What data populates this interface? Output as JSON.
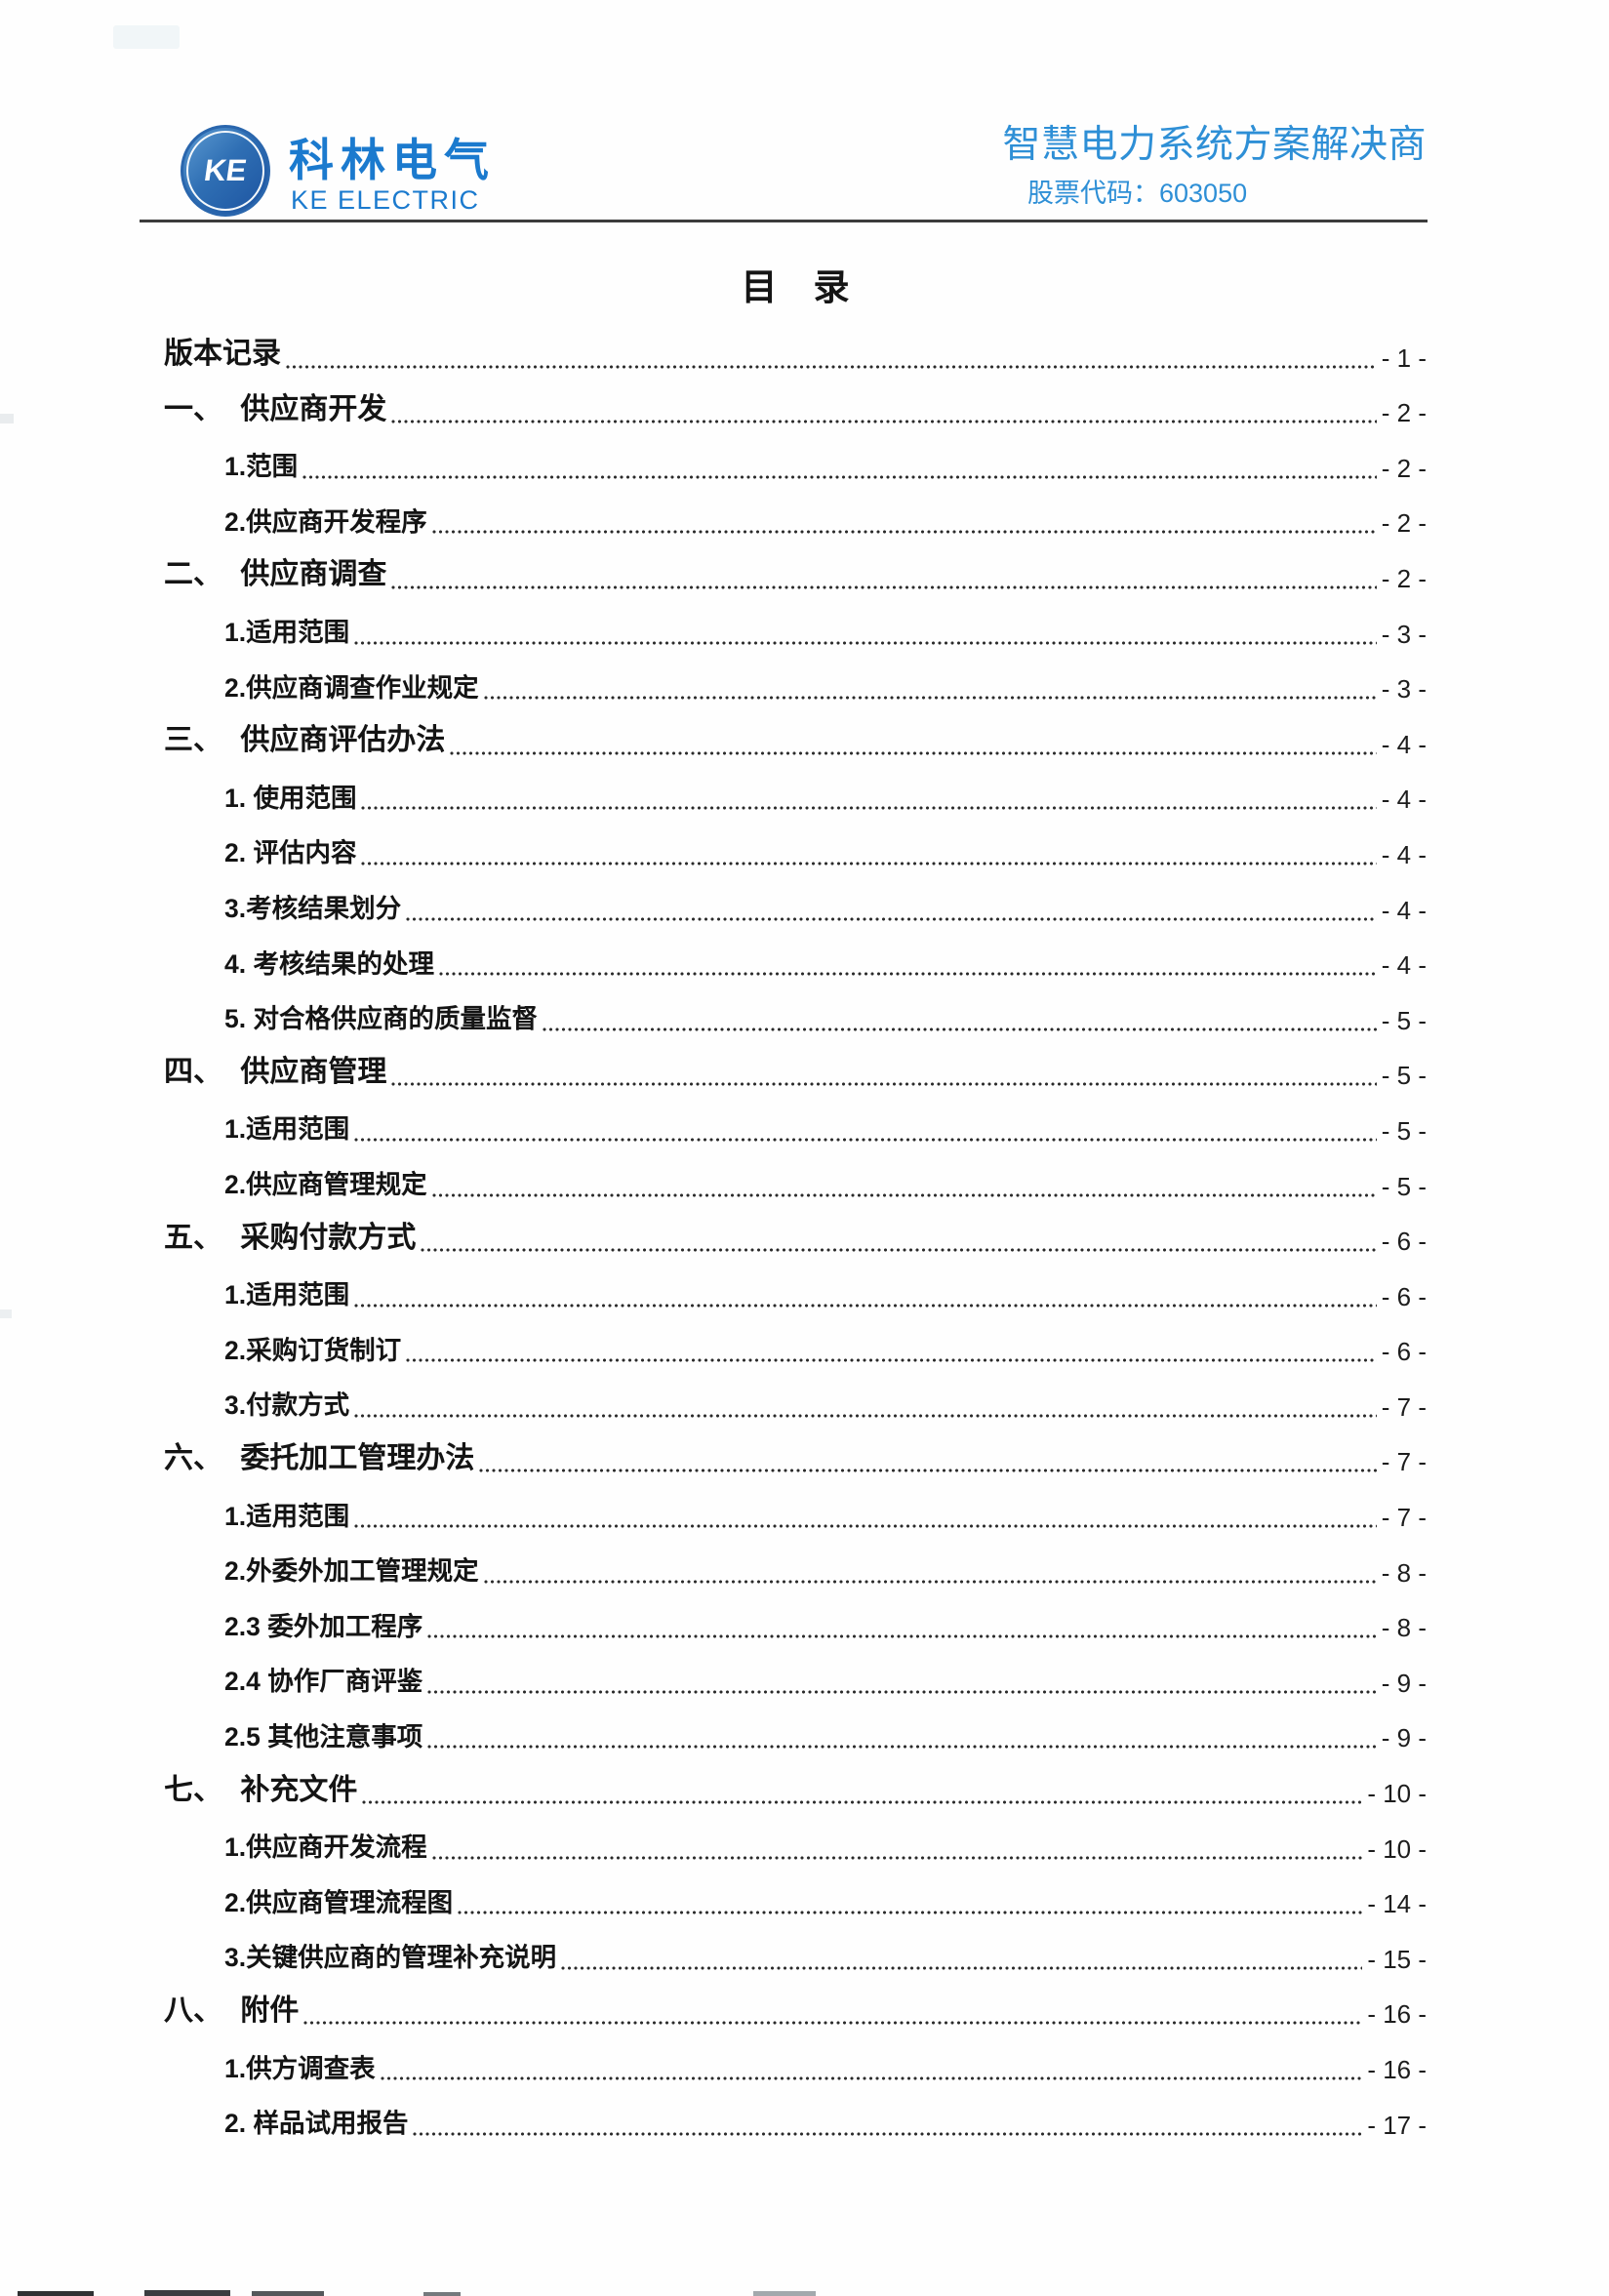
{
  "header": {
    "logo": {
      "monogram": "KE",
      "name_cn": "科林电气",
      "name_en": "KE ELECTRIC"
    },
    "tagline": "智慧电力系统方案解决商",
    "stock_code": "股票代码：603050"
  },
  "toc": {
    "title": "目　录",
    "entries": [
      {
        "level": 1,
        "label": "版本记录",
        "page": "- 1 -"
      },
      {
        "level": 1,
        "label": "一、 供应商开发",
        "page": "- 2 -"
      },
      {
        "level": 2,
        "label": "1.范围",
        "page": "- 2 -"
      },
      {
        "level": 2,
        "label": "2.供应商开发程序",
        "page": "- 2 -"
      },
      {
        "level": 1,
        "label": "二、 供应商调查",
        "page": "- 2 -"
      },
      {
        "level": 2,
        "label": "1.适用范围",
        "page": "- 3 -"
      },
      {
        "level": 2,
        "label": "2.供应商调查作业规定",
        "page": "- 3 -"
      },
      {
        "level": 1,
        "label": "三、 供应商评估办法",
        "page": "- 4 -"
      },
      {
        "level": 2,
        "label": "1.  使用范围",
        "page": "- 4 -"
      },
      {
        "level": 2,
        "label": "2.  评估内容",
        "page": "- 4 -"
      },
      {
        "level": 2,
        "label": "3.考核结果划分",
        "page": "- 4 -"
      },
      {
        "level": 2,
        "label": "4.  考核结果的处理",
        "page": "- 4 -"
      },
      {
        "level": 2,
        "label": "5.  对合格供应商的质量监督",
        "page": "- 5 -"
      },
      {
        "level": 1,
        "label": "四、 供应商管理",
        "page": "- 5 -"
      },
      {
        "level": 2,
        "label": "1.适用范围",
        "page": "- 5 -"
      },
      {
        "level": 2,
        "label": "2.供应商管理规定",
        "page": "- 5 -"
      },
      {
        "level": 1,
        "label": "五、 采购付款方式",
        "page": "- 6 -"
      },
      {
        "level": 2,
        "label": "1.适用范围",
        "page": "- 6 -"
      },
      {
        "level": 2,
        "label": "2.采购订货制订",
        "page": "- 6 -"
      },
      {
        "level": 2,
        "label": "3.付款方式",
        "page": "- 7 -"
      },
      {
        "level": 1,
        "label": "六、 委托加工管理办法",
        "page": "- 7 -"
      },
      {
        "level": 2,
        "label": "1.适用范围",
        "page": "- 7 -"
      },
      {
        "level": 2,
        "label": "2.外委外加工管理规定",
        "page": "- 8 -"
      },
      {
        "level": 2,
        "label": "2.3 委外加工程序",
        "page": "- 8 -"
      },
      {
        "level": 2,
        "label": "2.4 协作厂商评鉴",
        "page": "- 9 -"
      },
      {
        "level": 2,
        "label": "2.5 其他注意事项",
        "page": "- 9 -"
      },
      {
        "level": 1,
        "label": "七、 补充文件",
        "page": "- 10 -"
      },
      {
        "level": 2,
        "label": "1.供应商开发流程",
        "page": "- 10 -"
      },
      {
        "level": 2,
        "label": "2.供应商管理流程图",
        "page": "- 14 -"
      },
      {
        "level": 2,
        "label": "3.关键供应商的管理补充说明",
        "page": "- 15 -"
      },
      {
        "level": 1,
        "label": "八、 附件",
        "page": "- 16 -"
      },
      {
        "level": 2,
        "label": "1.供方调查表",
        "page": "- 16 -"
      },
      {
        "level": 2,
        "label": "2. 样品试用报告",
        "page": "- 17 -"
      }
    ]
  },
  "colors": {
    "brand_blue": "#1b7ace",
    "tagline_blue": "#2e8fd6",
    "header_rule": "#3c3c3c",
    "body_text": "#141414"
  }
}
